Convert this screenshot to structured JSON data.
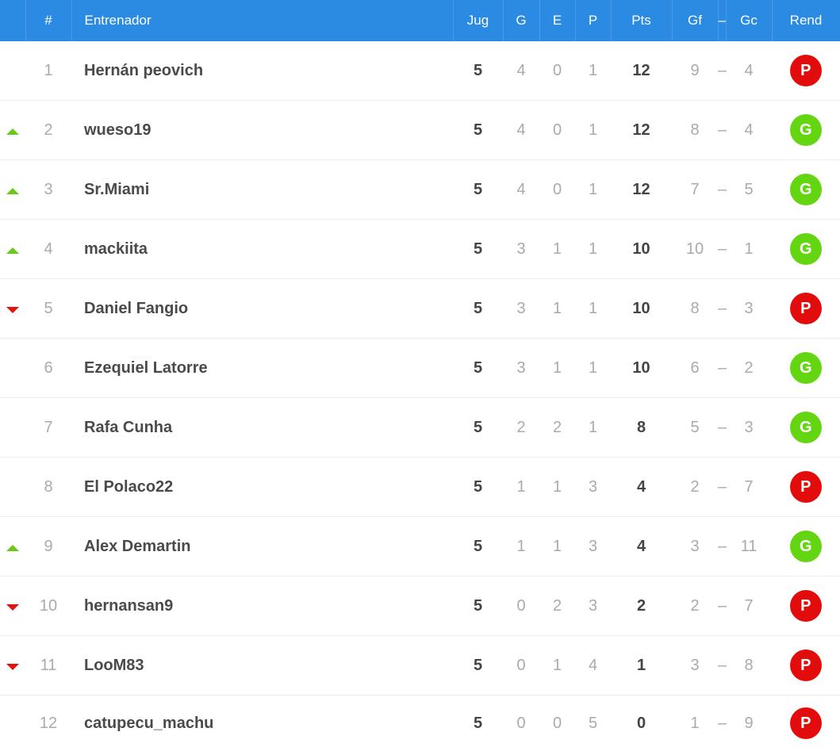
{
  "header": {
    "pos": "#",
    "name": "Entrenador",
    "jug": "Jug",
    "g": "G",
    "e": "E",
    "p": "P",
    "pts": "Pts",
    "gf": "Gf",
    "sep": "–",
    "gc": "Gc",
    "rend": "Rend"
  },
  "colors": {
    "header_bg": "#2b8be3",
    "trend_up": "#6ac915",
    "trend_down": "#e2120c",
    "badge_win": "#64d611",
    "badge_loss": "#e20c0c"
  },
  "rows": [
    {
      "trend": "none",
      "pos": "1",
      "name": "Hernán peovich",
      "jug": "5",
      "g": "4",
      "e": "0",
      "p": "1",
      "pts": "12",
      "gf": "9",
      "dash": "–",
      "gc": "4",
      "rend": "P"
    },
    {
      "trend": "up",
      "pos": "2",
      "name": "wueso19",
      "jug": "5",
      "g": "4",
      "e": "0",
      "p": "1",
      "pts": "12",
      "gf": "8",
      "dash": "–",
      "gc": "4",
      "rend": "G"
    },
    {
      "trend": "up",
      "pos": "3",
      "name": "Sr.Miami",
      "jug": "5",
      "g": "4",
      "e": "0",
      "p": "1",
      "pts": "12",
      "gf": "7",
      "dash": "–",
      "gc": "5",
      "rend": "G"
    },
    {
      "trend": "up",
      "pos": "4",
      "name": "mackiita",
      "jug": "5",
      "g": "3",
      "e": "1",
      "p": "1",
      "pts": "10",
      "gf": "10",
      "dash": "–",
      "gc": "1",
      "rend": "G"
    },
    {
      "trend": "down",
      "pos": "5",
      "name": "Daniel Fangio",
      "jug": "5",
      "g": "3",
      "e": "1",
      "p": "1",
      "pts": "10",
      "gf": "8",
      "dash": "–",
      "gc": "3",
      "rend": "P"
    },
    {
      "trend": "none",
      "pos": "6",
      "name": "Ezequiel Latorre",
      "jug": "5",
      "g": "3",
      "e": "1",
      "p": "1",
      "pts": "10",
      "gf": "6",
      "dash": "–",
      "gc": "2",
      "rend": "G"
    },
    {
      "trend": "none",
      "pos": "7",
      "name": "Rafa Cunha",
      "jug": "5",
      "g": "2",
      "e": "2",
      "p": "1",
      "pts": "8",
      "gf": "5",
      "dash": "–",
      "gc": "3",
      "rend": "G"
    },
    {
      "trend": "none",
      "pos": "8",
      "name": "El Polaco22",
      "jug": "5",
      "g": "1",
      "e": "1",
      "p": "3",
      "pts": "4",
      "gf": "2",
      "dash": "–",
      "gc": "7",
      "rend": "P"
    },
    {
      "trend": "up",
      "pos": "9",
      "name": "Alex Demartin",
      "jug": "5",
      "g": "1",
      "e": "1",
      "p": "3",
      "pts": "4",
      "gf": "3",
      "dash": "–",
      "gc": "11",
      "rend": "G"
    },
    {
      "trend": "down",
      "pos": "10",
      "name": "hernansan9",
      "jug": "5",
      "g": "0",
      "e": "2",
      "p": "3",
      "pts": "2",
      "gf": "2",
      "dash": "–",
      "gc": "7",
      "rend": "P"
    },
    {
      "trend": "down",
      "pos": "11",
      "name": "LooM83",
      "jug": "5",
      "g": "0",
      "e": "1",
      "p": "4",
      "pts": "1",
      "gf": "3",
      "dash": "–",
      "gc": "8",
      "rend": "P"
    },
    {
      "trend": "none",
      "pos": "12",
      "name": "catupecu_machu",
      "jug": "5",
      "g": "0",
      "e": "0",
      "p": "5",
      "pts": "0",
      "gf": "1",
      "dash": "–",
      "gc": "9",
      "rend": "P"
    }
  ]
}
